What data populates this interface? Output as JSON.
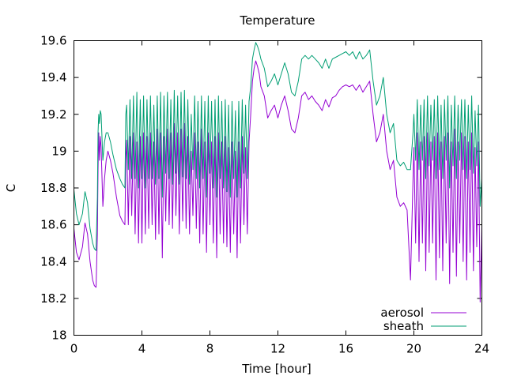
{
  "chart_data": {
    "type": "line",
    "title": "Temperature",
    "xlabel": "Time [hour]",
    "ylabel": "C",
    "xlim": [
      0,
      24
    ],
    "ylim": [
      18,
      19.6
    ],
    "xticks": [
      0,
      4,
      8,
      12,
      16,
      20,
      24
    ],
    "xtick_labels": [
      "0",
      "4",
      "8",
      "12",
      "16",
      "20",
      "24"
    ],
    "yticks": [
      18,
      18.2,
      18.4,
      18.6,
      18.8,
      19,
      19.2,
      19.4,
      19.6
    ],
    "ytick_labels": [
      "18",
      "18.2",
      "18.4",
      "18.6",
      "18.8",
      "19",
      "19.2",
      "19.4",
      "19.6"
    ],
    "grid": false,
    "legend_position": "bottom-right",
    "series": [
      {
        "name": "aerosol",
        "color": "#9400d3",
        "x": [
          0,
          0.15,
          0.3,
          0.5,
          0.65,
          0.8,
          0.95,
          1.1,
          1.2,
          1.3,
          1.38,
          1.42,
          1.46,
          1.5,
          1.55,
          1.6,
          1.7,
          1.8,
          1.9,
          2.0,
          2.15,
          2.3,
          2.5,
          2.7,
          2.85,
          3.0,
          3.05,
          3.1,
          3.2,
          3.3,
          3.4,
          3.5,
          3.6,
          3.7,
          3.8,
          3.9,
          4.0,
          4.1,
          4.2,
          4.3,
          4.4,
          4.5,
          4.6,
          4.7,
          4.8,
          4.9,
          5.0,
          5.1,
          5.2,
          5.3,
          5.4,
          5.5,
          5.6,
          5.7,
          5.8,
          5.9,
          6.0,
          6.1,
          6.2,
          6.3,
          6.4,
          6.5,
          6.6,
          6.7,
          6.8,
          6.9,
          7.0,
          7.1,
          7.2,
          7.3,
          7.4,
          7.5,
          7.6,
          7.7,
          7.8,
          7.9,
          8.0,
          8.1,
          8.2,
          8.3,
          8.4,
          8.5,
          8.6,
          8.7,
          8.8,
          8.9,
          9.0,
          9.1,
          9.2,
          9.3,
          9.4,
          9.5,
          9.6,
          9.7,
          9.8,
          9.9,
          10.0,
          10.1,
          10.2,
          10.3,
          10.4,
          10.5,
          10.6,
          10.7,
          10.8,
          10.9,
          11.0,
          11.2,
          11.4,
          11.6,
          11.8,
          12.0,
          12.2,
          12.4,
          12.6,
          12.8,
          13.0,
          13.2,
          13.4,
          13.6,
          13.8,
          14.0,
          14.2,
          14.4,
          14.6,
          14.8,
          15.0,
          15.2,
          15.4,
          15.6,
          15.8,
          16.0,
          16.2,
          16.4,
          16.6,
          16.8,
          17.0,
          17.2,
          17.4,
          17.6,
          17.8,
          18.0,
          18.2,
          18.4,
          18.6,
          18.8,
          19.0,
          19.2,
          19.4,
          19.6,
          19.8,
          19.95,
          20.0,
          20.1,
          20.2,
          20.3,
          20.4,
          20.5,
          20.6,
          20.7,
          20.8,
          20.9,
          21.0,
          21.1,
          21.2,
          21.3,
          21.4,
          21.5,
          21.6,
          21.7,
          21.8,
          21.9,
          22.0,
          22.1,
          22.2,
          22.3,
          22.4,
          22.5,
          22.6,
          22.7,
          22.8,
          22.9,
          23.0,
          23.1,
          23.2,
          23.3,
          23.4,
          23.5,
          23.6,
          23.7,
          23.8,
          23.9,
          24.0
        ],
        "y": [
          18.58,
          18.45,
          18.41,
          18.48,
          18.61,
          18.55,
          18.4,
          18.3,
          18.27,
          18.26,
          18.55,
          18.9,
          19.1,
          18.95,
          19.08,
          19.02,
          18.7,
          18.85,
          18.95,
          19.0,
          18.95,
          18.88,
          18.75,
          18.65,
          18.62,
          18.6,
          18.95,
          19.06,
          18.6,
          19.08,
          18.65,
          19.1,
          18.55,
          19.05,
          18.5,
          19.08,
          18.5,
          19.1,
          18.55,
          19.08,
          18.58,
          19.1,
          18.6,
          19.05,
          18.52,
          19.12,
          18.55,
          19.1,
          18.42,
          19.08,
          18.62,
          19.12,
          18.6,
          19.1,
          18.58,
          19.15,
          18.65,
          19.1,
          18.55,
          19.12,
          18.62,
          19.15,
          18.58,
          19.08,
          18.55,
          19.0,
          18.65,
          19.1,
          18.58,
          19.05,
          18.5,
          19.12,
          18.55,
          19.05,
          18.45,
          19.1,
          18.6,
          19.05,
          18.5,
          19.08,
          18.42,
          19.1,
          18.55,
          19.05,
          18.5,
          19.08,
          18.48,
          19.02,
          18.45,
          19.05,
          18.55,
          19.0,
          18.42,
          19.05,
          18.5,
          19.08,
          18.6,
          19.02,
          18.55,
          19.05,
          19.2,
          19.38,
          19.45,
          19.49,
          19.46,
          19.42,
          19.35,
          19.3,
          19.18,
          19.22,
          19.25,
          19.18,
          19.25,
          19.3,
          19.22,
          19.12,
          19.1,
          19.18,
          19.3,
          19.32,
          19.28,
          19.3,
          19.27,
          19.25,
          19.22,
          19.28,
          19.24,
          19.29,
          19.3,
          19.33,
          19.35,
          19.36,
          19.35,
          19.36,
          19.33,
          19.36,
          19.32,
          19.35,
          19.38,
          19.2,
          19.05,
          19.1,
          19.2,
          19.0,
          18.9,
          18.95,
          18.75,
          18.7,
          18.72,
          18.68,
          18.3,
          18.85,
          19.02,
          18.5,
          19.1,
          18.4,
          19.05,
          18.5,
          19.08,
          18.35,
          19.1,
          18.45,
          19.05,
          18.5,
          19.08,
          18.3,
          19.1,
          18.42,
          19.05,
          18.35,
          19.08,
          18.5,
          19.1,
          18.28,
          19.05,
          18.45,
          19.12,
          18.32,
          19.05,
          18.5,
          19.1,
          18.4,
          19.08,
          18.3,
          19.05,
          18.45,
          19.1,
          18.35,
          19.02,
          18.48,
          19.05,
          18.18,
          18.6
        ]
      },
      {
        "name": "sheath",
        "color": "#009e73",
        "x": [
          0,
          0.15,
          0.3,
          0.5,
          0.65,
          0.8,
          0.95,
          1.1,
          1.2,
          1.3,
          1.38,
          1.42,
          1.46,
          1.5,
          1.55,
          1.6,
          1.7,
          1.8,
          1.9,
          2.0,
          2.15,
          2.3,
          2.5,
          2.7,
          2.85,
          3.0,
          3.05,
          3.1,
          3.2,
          3.3,
          3.4,
          3.5,
          3.6,
          3.7,
          3.8,
          3.9,
          4.0,
          4.1,
          4.2,
          4.3,
          4.4,
          4.5,
          4.6,
          4.7,
          4.8,
          4.9,
          5.0,
          5.1,
          5.2,
          5.3,
          5.4,
          5.5,
          5.6,
          5.7,
          5.8,
          5.9,
          6.0,
          6.1,
          6.2,
          6.3,
          6.4,
          6.5,
          6.6,
          6.7,
          6.8,
          6.9,
          7.0,
          7.1,
          7.2,
          7.3,
          7.4,
          7.5,
          7.6,
          7.7,
          7.8,
          7.9,
          8.0,
          8.1,
          8.2,
          8.3,
          8.4,
          8.5,
          8.6,
          8.7,
          8.8,
          8.9,
          9.0,
          9.1,
          9.2,
          9.3,
          9.4,
          9.5,
          9.6,
          9.7,
          9.8,
          9.9,
          10.0,
          10.1,
          10.2,
          10.3,
          10.4,
          10.5,
          10.6,
          10.7,
          10.8,
          10.9,
          11.0,
          11.2,
          11.4,
          11.6,
          11.8,
          12.0,
          12.2,
          12.4,
          12.6,
          12.8,
          13.0,
          13.2,
          13.4,
          13.6,
          13.8,
          14.0,
          14.2,
          14.4,
          14.6,
          14.8,
          15.0,
          15.2,
          15.4,
          15.6,
          15.8,
          16.0,
          16.2,
          16.4,
          16.6,
          16.8,
          17.0,
          17.2,
          17.4,
          17.6,
          17.8,
          18.0,
          18.2,
          18.4,
          18.6,
          18.8,
          19.0,
          19.2,
          19.4,
          19.6,
          19.8,
          19.95,
          20.0,
          20.1,
          20.2,
          20.3,
          20.4,
          20.5,
          20.6,
          20.7,
          20.8,
          20.9,
          21.0,
          21.1,
          21.2,
          21.3,
          21.4,
          21.5,
          21.6,
          21.7,
          21.8,
          21.9,
          22.0,
          22.1,
          22.2,
          22.3,
          22.4,
          22.5,
          22.6,
          22.7,
          22.8,
          22.9,
          23.0,
          23.1,
          23.2,
          23.3,
          23.4,
          23.5,
          23.6,
          23.7,
          23.8,
          23.9,
          24.0
        ],
        "y": [
          18.79,
          18.66,
          18.6,
          18.66,
          18.78,
          18.72,
          18.58,
          18.5,
          18.47,
          18.46,
          18.75,
          19.1,
          19.2,
          19.15,
          19.22,
          19.2,
          18.95,
          19.05,
          19.1,
          19.1,
          19.05,
          18.98,
          18.9,
          18.85,
          18.82,
          18.8,
          19.2,
          19.25,
          18.9,
          19.28,
          18.85,
          19.3,
          18.85,
          19.32,
          18.8,
          19.28,
          18.85,
          19.3,
          18.8,
          19.28,
          18.85,
          19.3,
          18.85,
          19.25,
          18.82,
          19.3,
          18.85,
          19.32,
          18.75,
          19.3,
          18.88,
          19.32,
          18.85,
          19.28,
          18.82,
          19.33,
          18.88,
          19.3,
          18.82,
          19.32,
          18.86,
          19.33,
          18.85,
          19.28,
          18.82,
          19.2,
          18.9,
          19.3,
          18.85,
          19.27,
          18.8,
          19.3,
          18.85,
          19.27,
          18.75,
          19.3,
          18.88,
          19.27,
          18.8,
          19.28,
          18.75,
          19.3,
          18.85,
          19.27,
          18.8,
          19.28,
          18.78,
          19.25,
          18.75,
          19.27,
          18.85,
          19.22,
          18.75,
          19.27,
          18.8,
          19.28,
          18.88,
          19.25,
          18.85,
          19.27,
          19.35,
          19.5,
          19.55,
          19.59,
          19.57,
          19.54,
          19.5,
          19.45,
          19.35,
          19.38,
          19.42,
          19.36,
          19.42,
          19.48,
          19.42,
          19.32,
          19.3,
          19.38,
          19.5,
          19.52,
          19.5,
          19.52,
          19.5,
          19.48,
          19.45,
          19.5,
          19.45,
          19.5,
          19.51,
          19.52,
          19.53,
          19.54,
          19.52,
          19.54,
          19.5,
          19.54,
          19.5,
          19.52,
          19.55,
          19.38,
          19.25,
          19.3,
          19.4,
          19.2,
          19.1,
          19.15,
          18.95,
          18.92,
          18.94,
          18.9,
          18.9,
          19.1,
          19.2,
          18.95,
          19.28,
          18.9,
          19.25,
          18.95,
          19.28,
          18.85,
          19.3,
          18.92,
          19.25,
          18.95,
          19.28,
          18.85,
          19.3,
          18.9,
          19.25,
          18.85,
          19.28,
          18.95,
          19.3,
          18.8,
          19.25,
          18.92,
          19.3,
          18.85,
          19.25,
          18.95,
          19.28,
          18.9,
          19.28,
          18.85,
          19.25,
          18.9,
          19.3,
          18.88,
          19.22,
          18.92,
          19.25,
          18.7,
          18.85
        ]
      }
    ]
  }
}
